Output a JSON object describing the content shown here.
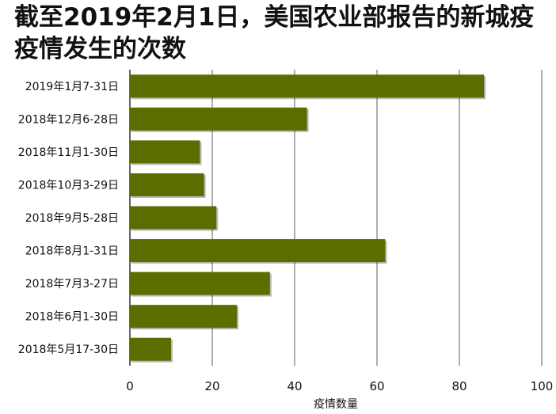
{
  "chart_data": {
    "type": "bar",
    "orientation": "horizontal",
    "title": "截至2019年2月1日，美国农业部报告的新城疫疫情发生的次数",
    "xlabel": "疫情数量",
    "ylabel": "",
    "categories": [
      "2019年1月7-31日",
      "2018年12月6-28日",
      "2018年11月1-30日",
      "2018年10月3-29日",
      "2018年9月5-28日",
      "2018年8月1-31日",
      "2018年7月3-27日",
      "2018年6月1-30日",
      "2018年5月17-30日"
    ],
    "values": [
      86,
      43,
      17,
      18,
      21,
      62,
      34,
      26,
      10
    ],
    "xlim": [
      0,
      100
    ],
    "xticks": [
      0,
      20,
      40,
      60,
      80,
      100
    ],
    "grid": "vertical",
    "legend": "none",
    "bar_color": "#5a6e00"
  }
}
